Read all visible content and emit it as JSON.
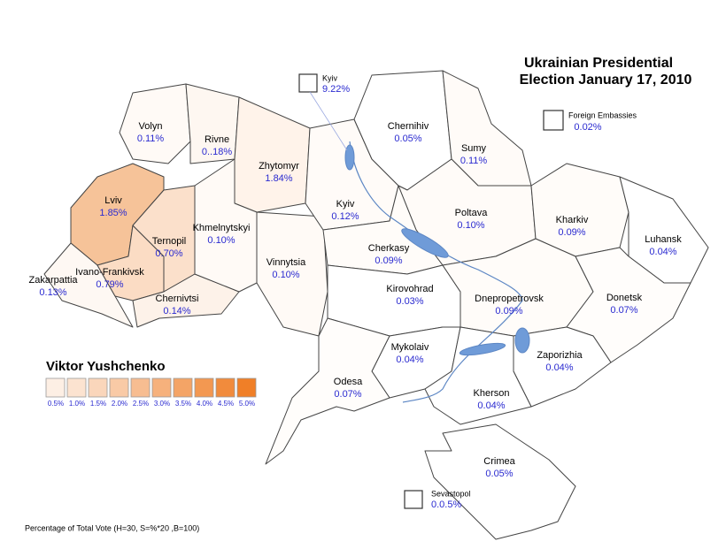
{
  "title": [
    "Ukrainian Presidential",
    "Election January 17, 2010"
  ],
  "regions": [
    {
      "name": "Volyn",
      "value": "0.11%"
    },
    {
      "name": "Rivne",
      "value": "0..18%"
    },
    {
      "name": "Zhytomyr",
      "value": "1.84%"
    },
    {
      "name": "Lviv",
      "value": "1.85%"
    },
    {
      "name": "Ternopil",
      "value": "0.70%"
    },
    {
      "name": "Khmelnytskyi",
      "value": "0.10%"
    },
    {
      "name": "Ivano-Frankivsk",
      "value": "0.79%"
    },
    {
      "name": "Zakarpattia",
      "value": "0.13%"
    },
    {
      "name": "Chernivtsi",
      "value": "0.14%"
    },
    {
      "name": "Vinnytsia",
      "value": "0.10%"
    },
    {
      "name": "Kyiv",
      "value": "0.12%"
    },
    {
      "name": "Chernihiv",
      "value": "0.05%"
    },
    {
      "name": "Sumy",
      "value": "0.11%"
    },
    {
      "name": "Poltava",
      "value": "0.10%"
    },
    {
      "name": "Cherkasy",
      "value": "0.09%"
    },
    {
      "name": "Kharkiv",
      "value": "0.09%"
    },
    {
      "name": "Luhansk",
      "value": "0.04%"
    },
    {
      "name": "Kirovohrad",
      "value": "0.03%"
    },
    {
      "name": "Dnepropetrovsk",
      "value": "0.09%"
    },
    {
      "name": "Donetsk",
      "value": "0.07%"
    },
    {
      "name": "Mykolaiv",
      "value": "0.04%"
    },
    {
      "name": "Zaporizhia",
      "value": "0.04%"
    },
    {
      "name": "Odesa",
      "value": "0.07%"
    },
    {
      "name": "Kherson",
      "value": "0.04%"
    },
    {
      "name": "Crimea",
      "value": "0.05%"
    }
  ],
  "insets": [
    {
      "name": "Kyiv",
      "value": "9.22%"
    },
    {
      "name": "Foreign Embassies",
      "value": "0.02%"
    },
    {
      "name": "Sevastopol",
      "value": "0.0.5%"
    }
  ],
  "legend": {
    "title": "Viktor Yushchenko",
    "items": [
      {
        "label": "0.5%",
        "color": "#fdefe4"
      },
      {
        "label": "1.0%",
        "color": "#fce3d0"
      },
      {
        "label": "1.5%",
        "color": "#fad6bb"
      },
      {
        "label": "2.0%",
        "color": "#f9caa6"
      },
      {
        "label": "2.5%",
        "color": "#f7bd91"
      },
      {
        "label": "3.0%",
        "color": "#f6b17c"
      },
      {
        "label": "3.5%",
        "color": "#f4a466"
      },
      {
        "label": "4.0%",
        "color": "#f39851"
      },
      {
        "label": "4.5%",
        "color": "#f18b3c"
      },
      {
        "label": "5.0%",
        "color": "#f07f27"
      }
    ]
  },
  "footnote": "Percentage of Total Vote (H=30, S=%*20 ,B=100)"
}
